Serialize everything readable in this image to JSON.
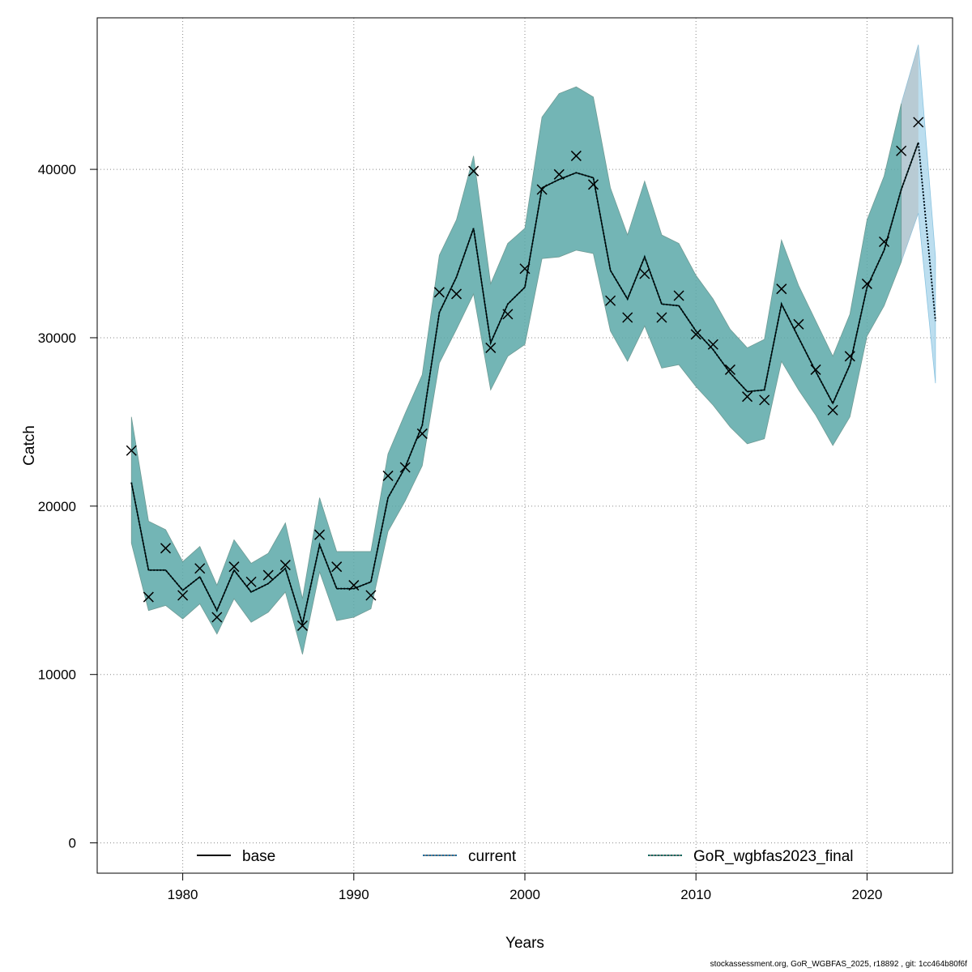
{
  "chart_data": {
    "type": "line",
    "xlabel": "Years",
    "ylabel": "Catch",
    "xlim": [
      1975,
      2025
    ],
    "ylim": [
      -1800,
      49000
    ],
    "x_ticks": [
      1980,
      1990,
      2000,
      2010,
      2020
    ],
    "y_ticks": [
      0,
      10000,
      20000,
      30000,
      40000
    ],
    "grid": true,
    "legend_position": "bottom",
    "colors": {
      "base": "#000000",
      "current": "#1f6fa0",
      "gor": "#0e6b60",
      "band_fill": "#5aa8a8",
      "band_terminal_current": "#a6d3ea",
      "band_terminal_base": "#b3b3b3"
    },
    "series": [
      {
        "name": "base",
        "line_style": "solid"
      },
      {
        "name": "current",
        "line_style": "dotted"
      },
      {
        "name": "GoR_wgbfas2023_final",
        "line_style": "dotted"
      }
    ],
    "x": [
      1977,
      1978,
      1979,
      1980,
      1981,
      1982,
      1983,
      1984,
      1985,
      1986,
      1987,
      1988,
      1989,
      1990,
      1991,
      1992,
      1993,
      1994,
      1995,
      1996,
      1997,
      1998,
      1999,
      2000,
      2001,
      2002,
      2003,
      2004,
      2005,
      2006,
      2007,
      2008,
      2009,
      2010,
      2011,
      2012,
      2013,
      2014,
      2015,
      2016,
      2017,
      2018,
      2019,
      2020,
      2021,
      2022,
      2023,
      2024
    ],
    "estimate": [
      21400,
      16200,
      16200,
      15000,
      15800,
      13800,
      16200,
      14900,
      15400,
      16300,
      13000,
      17700,
      15100,
      15100,
      15500,
      20500,
      22300,
      24800,
      31500,
      33600,
      36500,
      29700,
      32000,
      33000,
      38900,
      39400,
      39800,
      39500,
      34000,
      32300,
      34800,
      32000,
      31900,
      30400,
      29300,
      27900,
      26800,
      26900,
      32000,
      30000,
      28000,
      26100,
      28400,
      33000,
      35200,
      38800,
      41600,
      31000
    ],
    "lower": [
      17800,
      13800,
      14100,
      13300,
      14200,
      12400,
      14500,
      13100,
      13700,
      14900,
      11200,
      16100,
      13200,
      13400,
      13900,
      18500,
      20300,
      22400,
      28500,
      30500,
      32600,
      26900,
      28900,
      29600,
      34700,
      34800,
      35200,
      35000,
      30400,
      28600,
      30700,
      28200,
      28400,
      27100,
      26000,
      24700,
      23700,
      24000,
      28600,
      26900,
      25400,
      23600,
      25300,
      30100,
      31900,
      34500,
      37400,
      27300
    ],
    "upper": [
      25300,
      19100,
      18600,
      16700,
      17600,
      15300,
      18000,
      16600,
      17200,
      19000,
      14500,
      20500,
      17300,
      17300,
      17300,
      23100,
      25500,
      27800,
      34900,
      37000,
      40800,
      33200,
      35600,
      36500,
      43100,
      44500,
      44900,
      44300,
      38900,
      36100,
      39300,
      36100,
      35600,
      33700,
      32300,
      30500,
      29400,
      29900,
      35800,
      33100,
      31000,
      28900,
      31400,
      37000,
      39600,
      43900,
      47400,
      34800
    ],
    "observed_catch": [
      23300,
      14600,
      17500,
      14700,
      16300,
      13400,
      16400,
      15500,
      15900,
      16500,
      12900,
      18300,
      16400,
      15300,
      14700,
      21800,
      22300,
      24300,
      32700,
      32600,
      39900,
      29400,
      31400,
      34100,
      38800,
      39700,
      40800,
      39100,
      32200,
      31200,
      33800,
      31200,
      32500,
      30200,
      29600,
      28100,
      26500,
      26300,
      32900,
      30800,
      28100,
      25700,
      28900,
      33200,
      35700,
      41100,
      42800
    ]
  },
  "footer": "stockassessment.org, GoR_WGBFAS_2025, r18892 , git: 1cc464b80f6f"
}
